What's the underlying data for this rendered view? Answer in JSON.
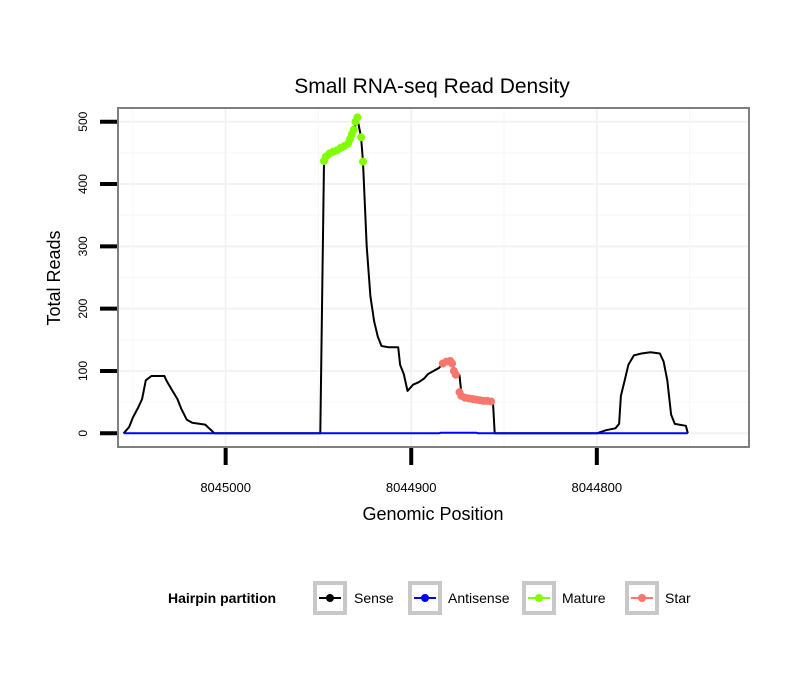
{
  "chart_data": {
    "type": "line",
    "title": "Small RNA-seq Read Density",
    "xlabel": "Genomic Position",
    "ylabel": "Total Reads",
    "xlim": [
      8045058,
      8044718
    ],
    "x_reversed": true,
    "ylim": [
      -22,
      522
    ],
    "x_ticks": [
      8045000,
      8044900,
      8044800
    ],
    "x_tick_labels": [
      "8045000",
      "8044900",
      "8044800"
    ],
    "y_ticks": [
      0,
      100,
      200,
      300,
      400,
      500
    ],
    "y_tick_labels": [
      "0",
      "100",
      "200",
      "300",
      "400",
      "500"
    ],
    "grid": true,
    "legend": {
      "title": "Hairpin partition",
      "placement": "bottom",
      "entries": [
        "Sense",
        "Antisense",
        "Mature",
        "Star"
      ]
    },
    "series": [
      {
        "name": "Sense",
        "color": "#000000",
        "markers": false,
        "points": [
          [
            8045055,
            0
          ],
          [
            8045052,
            10
          ],
          [
            8045050,
            25
          ],
          [
            8045047,
            42
          ],
          [
            8045045,
            55
          ],
          [
            8045043,
            85
          ],
          [
            8045040,
            92
          ],
          [
            8045033,
            92
          ],
          [
            8045032,
            85
          ],
          [
            8045029,
            70
          ],
          [
            8045026,
            55
          ],
          [
            8045024,
            40
          ],
          [
            8045021,
            22
          ],
          [
            8045018,
            17
          ],
          [
            8045011,
            14
          ],
          [
            8045006,
            0
          ],
          [
            8044949,
            0
          ],
          [
            8044947,
            435
          ],
          [
            8044942,
            450
          ],
          [
            8044936,
            460
          ],
          [
            8044932,
            475
          ],
          [
            8044929,
            505
          ],
          [
            8044927,
            475
          ],
          [
            8044926,
            435
          ],
          [
            8044924,
            300
          ],
          [
            8044922,
            220
          ],
          [
            8044920,
            180
          ],
          [
            8044918,
            155
          ],
          [
            8044916,
            140
          ],
          [
            8044912,
            138
          ],
          [
            8044907,
            138
          ],
          [
            8044906,
            110
          ],
          [
            8044904,
            95
          ],
          [
            8044902,
            68
          ],
          [
            8044899,
            78
          ],
          [
            8044896,
            82
          ],
          [
            8044893,
            88
          ],
          [
            8044891,
            95
          ],
          [
            8044888,
            100
          ],
          [
            8044885,
            105
          ],
          [
            8044883,
            112
          ],
          [
            8044879,
            115
          ],
          [
            8044876,
            100
          ],
          [
            8044874,
            93
          ],
          [
            8044873,
            65
          ],
          [
            8044870,
            57
          ],
          [
            8044865,
            55
          ],
          [
            8044860,
            53
          ],
          [
            8044856,
            52
          ],
          [
            8044855,
            0
          ],
          [
            8044800,
            0
          ],
          [
            8044795,
            5
          ],
          [
            8044790,
            8
          ],
          [
            8044788,
            15
          ],
          [
            8044787,
            60
          ],
          [
            8044785,
            85
          ],
          [
            8044783,
            110
          ],
          [
            8044780,
            125
          ],
          [
            8044776,
            128
          ],
          [
            8044771,
            130
          ],
          [
            8044766,
            128
          ],
          [
            8044764,
            115
          ],
          [
            8044762,
            85
          ],
          [
            8044760,
            30
          ],
          [
            8044758,
            15
          ],
          [
            8044752,
            12
          ],
          [
            8044751,
            0
          ]
        ]
      },
      {
        "name": "Antisense",
        "color": "#0000ff",
        "markers": false,
        "points": [
          [
            8045055,
            0
          ],
          [
            8044885,
            0
          ],
          [
            8044884,
            1
          ],
          [
            8044865,
            1
          ],
          [
            8044864,
            0
          ],
          [
            8044751,
            0
          ]
        ]
      },
      {
        "name": "Mature",
        "color": "#7fff00",
        "markers": true,
        "points": [
          [
            8044947,
            437
          ],
          [
            8044946,
            444
          ],
          [
            8044944,
            449
          ],
          [
            8044942,
            452
          ],
          [
            8044940,
            454
          ],
          [
            8044938,
            458
          ],
          [
            8044936,
            461
          ],
          [
            8044934,
            465
          ],
          [
            8044933,
            472
          ],
          [
            8044932,
            480
          ],
          [
            8044931,
            487
          ],
          [
            8044930,
            500
          ],
          [
            8044929,
            507
          ],
          [
            8044927,
            475
          ],
          [
            8044926,
            436
          ]
        ]
      },
      {
        "name": "Star",
        "color": "#f8766d",
        "markers": true,
        "points": [
          [
            8044883,
            112
          ],
          [
            8044881,
            115
          ],
          [
            8044879,
            116
          ],
          [
            8044878,
            112
          ],
          [
            8044877,
            100
          ],
          [
            8044876,
            94
          ],
          [
            8044874,
            66
          ],
          [
            8044873,
            60
          ],
          [
            8044871,
            57
          ],
          [
            8044869,
            56
          ],
          [
            8044867,
            55
          ],
          [
            8044865,
            54
          ],
          [
            8044863,
            53
          ],
          [
            8044861,
            52
          ],
          [
            8044859,
            52
          ],
          [
            8044857,
            51
          ]
        ]
      }
    ]
  }
}
